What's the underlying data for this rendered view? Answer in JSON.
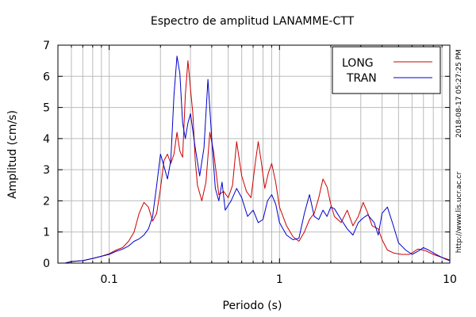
{
  "chart_data": {
    "type": "line",
    "title": "Espectro de amplitud LANAMME-CTT",
    "xlabel": "Periodo (s)",
    "ylabel": "Amplitud (cm/s)",
    "x_scale": "log",
    "xlim": [
      0.05,
      10
    ],
    "ylim": [
      0,
      7
    ],
    "x_ticks": [
      {
        "value": 0.1,
        "label": "0.1"
      },
      {
        "value": 1,
        "label": "1"
      },
      {
        "value": 10,
        "label": "10"
      }
    ],
    "y_ticks": [
      0,
      1,
      2,
      3,
      4,
      5,
      6,
      7
    ],
    "grid": true,
    "legend_position": "top-right",
    "timestamp": "2018-08-17 05:27:25 PM",
    "source": "http://www.lis.ucr.ac.cr",
    "series": [
      {
        "name": "LONG",
        "color": "#cc0000",
        "points": [
          [
            0.055,
            0.0
          ],
          [
            0.06,
            0.05
          ],
          [
            0.07,
            0.08
          ],
          [
            0.08,
            0.15
          ],
          [
            0.09,
            0.22
          ],
          [
            0.1,
            0.3
          ],
          [
            0.11,
            0.42
          ],
          [
            0.12,
            0.5
          ],
          [
            0.13,
            0.7
          ],
          [
            0.14,
            1.0
          ],
          [
            0.15,
            1.6
          ],
          [
            0.16,
            1.95
          ],
          [
            0.17,
            1.8
          ],
          [
            0.18,
            1.35
          ],
          [
            0.19,
            1.6
          ],
          [
            0.2,
            2.4
          ],
          [
            0.21,
            3.3
          ],
          [
            0.22,
            3.5
          ],
          [
            0.23,
            3.2
          ],
          [
            0.24,
            3.5
          ],
          [
            0.25,
            4.2
          ],
          [
            0.26,
            3.6
          ],
          [
            0.27,
            3.4
          ],
          [
            0.28,
            5.4
          ],
          [
            0.29,
            6.5
          ],
          [
            0.3,
            5.6
          ],
          [
            0.31,
            4.8
          ],
          [
            0.32,
            3.3
          ],
          [
            0.33,
            2.5
          ],
          [
            0.35,
            2.0
          ],
          [
            0.37,
            2.6
          ],
          [
            0.39,
            4.2
          ],
          [
            0.41,
            3.6
          ],
          [
            0.44,
            2.2
          ],
          [
            0.47,
            2.3
          ],
          [
            0.5,
            2.1
          ],
          [
            0.53,
            2.5
          ],
          [
            0.56,
            3.9
          ],
          [
            0.6,
            2.8
          ],
          [
            0.64,
            2.3
          ],
          [
            0.68,
            2.1
          ],
          [
            0.72,
            3.2
          ],
          [
            0.75,
            3.9
          ],
          [
            0.78,
            3.3
          ],
          [
            0.82,
            2.4
          ],
          [
            0.86,
            2.9
          ],
          [
            0.9,
            3.2
          ],
          [
            0.95,
            2.6
          ],
          [
            1.0,
            1.8
          ],
          [
            1.1,
            1.2
          ],
          [
            1.2,
            0.85
          ],
          [
            1.3,
            0.7
          ],
          [
            1.4,
            1.0
          ],
          [
            1.5,
            1.4
          ],
          [
            1.6,
            1.6
          ],
          [
            1.7,
            2.1
          ],
          [
            1.8,
            2.7
          ],
          [
            1.9,
            2.45
          ],
          [
            2.0,
            1.9
          ],
          [
            2.1,
            1.5
          ],
          [
            2.3,
            1.3
          ],
          [
            2.5,
            1.7
          ],
          [
            2.7,
            1.2
          ],
          [
            2.9,
            1.5
          ],
          [
            3.1,
            1.95
          ],
          [
            3.3,
            1.6
          ],
          [
            3.5,
            1.2
          ],
          [
            3.8,
            1.1
          ],
          [
            4.0,
            0.75
          ],
          [
            4.3,
            0.42
          ],
          [
            4.7,
            0.32
          ],
          [
            5.2,
            0.28
          ],
          [
            5.8,
            0.28
          ],
          [
            6.5,
            0.45
          ],
          [
            7.2,
            0.4
          ],
          [
            8.0,
            0.28
          ],
          [
            9.0,
            0.18
          ],
          [
            10.0,
            0.1
          ]
        ]
      },
      {
        "name": "TRAN",
        "color": "#0000cc",
        "points": [
          [
            0.055,
            0.0
          ],
          [
            0.06,
            0.05
          ],
          [
            0.07,
            0.08
          ],
          [
            0.08,
            0.15
          ],
          [
            0.09,
            0.22
          ],
          [
            0.1,
            0.28
          ],
          [
            0.11,
            0.38
          ],
          [
            0.12,
            0.45
          ],
          [
            0.13,
            0.55
          ],
          [
            0.14,
            0.7
          ],
          [
            0.15,
            0.78
          ],
          [
            0.16,
            0.9
          ],
          [
            0.17,
            1.1
          ],
          [
            0.18,
            1.5
          ],
          [
            0.19,
            2.5
          ],
          [
            0.2,
            3.5
          ],
          [
            0.21,
            3.1
          ],
          [
            0.22,
            2.7
          ],
          [
            0.23,
            3.3
          ],
          [
            0.24,
            5.4
          ],
          [
            0.25,
            6.65
          ],
          [
            0.26,
            6.1
          ],
          [
            0.27,
            4.5
          ],
          [
            0.28,
            4.0
          ],
          [
            0.29,
            4.5
          ],
          [
            0.3,
            4.8
          ],
          [
            0.32,
            3.7
          ],
          [
            0.34,
            2.8
          ],
          [
            0.36,
            3.7
          ],
          [
            0.38,
            5.9
          ],
          [
            0.4,
            4.0
          ],
          [
            0.42,
            2.4
          ],
          [
            0.44,
            2.0
          ],
          [
            0.46,
            2.6
          ],
          [
            0.48,
            1.7
          ],
          [
            0.52,
            2.0
          ],
          [
            0.56,
            2.4
          ],
          [
            0.6,
            2.1
          ],
          [
            0.65,
            1.5
          ],
          [
            0.7,
            1.7
          ],
          [
            0.75,
            1.3
          ],
          [
            0.8,
            1.4
          ],
          [
            0.85,
            2.0
          ],
          [
            0.9,
            2.2
          ],
          [
            0.95,
            1.9
          ],
          [
            1.0,
            1.3
          ],
          [
            1.1,
            0.9
          ],
          [
            1.2,
            0.75
          ],
          [
            1.3,
            0.8
          ],
          [
            1.4,
            1.6
          ],
          [
            1.5,
            2.2
          ],
          [
            1.6,
            1.5
          ],
          [
            1.7,
            1.4
          ],
          [
            1.8,
            1.7
          ],
          [
            1.9,
            1.5
          ],
          [
            2.0,
            1.8
          ],
          [
            2.1,
            1.75
          ],
          [
            2.3,
            1.4
          ],
          [
            2.5,
            1.1
          ],
          [
            2.7,
            0.9
          ],
          [
            2.9,
            1.3
          ],
          [
            3.1,
            1.45
          ],
          [
            3.3,
            1.55
          ],
          [
            3.6,
            1.3
          ],
          [
            3.8,
            0.9
          ],
          [
            4.0,
            1.6
          ],
          [
            4.3,
            1.8
          ],
          [
            4.6,
            1.3
          ],
          [
            5.0,
            0.65
          ],
          [
            5.5,
            0.42
          ],
          [
            6.0,
            0.28
          ],
          [
            6.5,
            0.38
          ],
          [
            7.0,
            0.5
          ],
          [
            7.5,
            0.42
          ],
          [
            8.5,
            0.25
          ],
          [
            9.5,
            0.12
          ],
          [
            10.0,
            0.08
          ]
        ]
      }
    ]
  }
}
